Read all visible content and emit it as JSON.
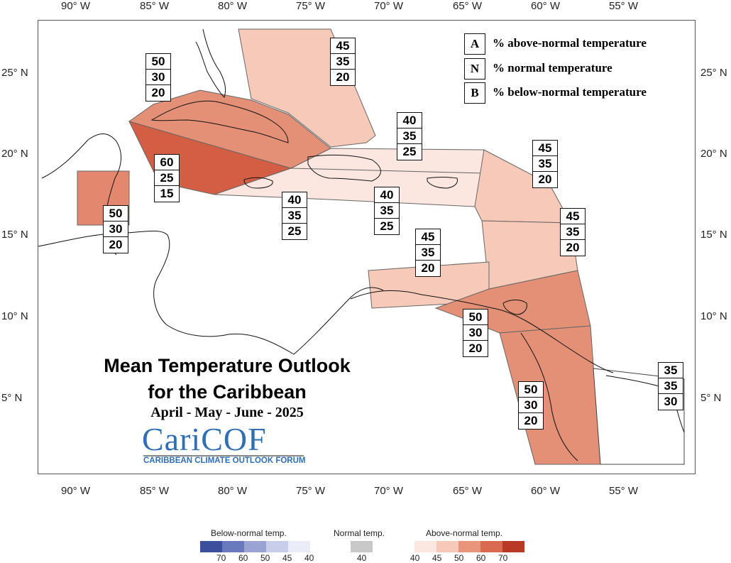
{
  "map": {
    "lon_labels": [
      "90° W",
      "85° W",
      "80° W",
      "75° W",
      "70° W",
      "65° W",
      "60° W",
      "55° W"
    ],
    "lat_labels": [
      "25° N",
      "20° N",
      "15° N",
      "10° N",
      "5° N"
    ],
    "regions": [
      {
        "id": "bahamas",
        "fill": "#f7c9b8"
      },
      {
        "id": "cuba",
        "fill": "#e39077"
      },
      {
        "id": "cayman-jamaica",
        "fill": "#d35e44"
      },
      {
        "id": "belize",
        "fill": "#e3886e"
      },
      {
        "id": "hispaniola-west",
        "fill": "#fbe7df"
      },
      {
        "id": "hispaniola-prico",
        "fill": "#fbe7df"
      },
      {
        "id": "leewards",
        "fill": "#f7c9b8"
      },
      {
        "id": "windwards",
        "fill": "#f7c9b8"
      },
      {
        "id": "abc-islands",
        "fill": "#f7c9b8"
      },
      {
        "id": "trinidad",
        "fill": "#e39077"
      },
      {
        "id": "guyana",
        "fill": "#e39077"
      },
      {
        "id": "suriname",
        "fill": "#ffffff"
      }
    ],
    "boxes": [
      {
        "id": "bahamas-box",
        "values": [
          "45",
          "35",
          "20"
        ]
      },
      {
        "id": "cuba-box",
        "values": [
          "50",
          "30",
          "20"
        ]
      },
      {
        "id": "jamaica-box",
        "values": [
          "60",
          "25",
          "15"
        ]
      },
      {
        "id": "belize-box",
        "values": [
          "50",
          "30",
          "20"
        ]
      },
      {
        "id": "hispaniola-box",
        "values": [
          "40",
          "35",
          "25"
        ]
      },
      {
        "id": "haiti-south-box",
        "values": [
          "40",
          "35",
          "25"
        ]
      },
      {
        "id": "dr-pr-box",
        "values": [
          "40",
          "35",
          "25"
        ]
      },
      {
        "id": "leewards-box",
        "values": [
          "45",
          "35",
          "20"
        ]
      },
      {
        "id": "windwards-box",
        "values": [
          "45",
          "35",
          "20"
        ]
      },
      {
        "id": "abc-box",
        "values": [
          "45",
          "35",
          "20"
        ]
      },
      {
        "id": "trinidad-box",
        "values": [
          "50",
          "30",
          "20"
        ]
      },
      {
        "id": "guyana-box",
        "values": [
          "50",
          "30",
          "20"
        ]
      },
      {
        "id": "suriname-box",
        "values": [
          "35",
          "35",
          "30"
        ]
      }
    ]
  },
  "key": [
    {
      "letter": "A",
      "text": "% above-normal temperature"
    },
    {
      "letter": "N",
      "text": "% normal temperature"
    },
    {
      "letter": "B",
      "text": "% below-normal temperature"
    }
  ],
  "title": {
    "line1": "Mean Temperature Outlook",
    "line2": "for the Caribbean",
    "period": "April - May - June - 2025"
  },
  "logo": {
    "name": "CariCOF",
    "subtitle": "CARIBBEAN CLIMATE OUTLOOK FORUM"
  },
  "colorbar": {
    "below": {
      "label": "Below-normal temp.",
      "colors": [
        "#3b4f9c",
        "#6a78bc",
        "#9aa3d3",
        "#c8cdea",
        "#eaedf8"
      ],
      "ticks": [
        "70",
        "60",
        "50",
        "45",
        "40"
      ]
    },
    "normal": {
      "label": "Normal temp.",
      "color": "#c8c8c8",
      "ticks": [
        "40"
      ]
    },
    "above": {
      "label": "Above-normal temp.",
      "colors": [
        "#fbe7df",
        "#f7c9b8",
        "#e9957b",
        "#d96a50",
        "#b83a25"
      ],
      "ticks": [
        "40",
        "45",
        "50",
        "60",
        "70"
      ]
    }
  }
}
